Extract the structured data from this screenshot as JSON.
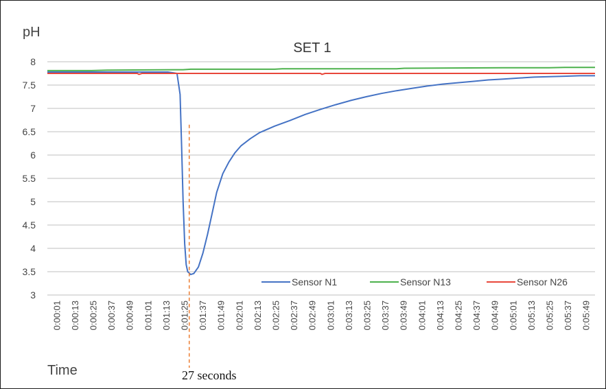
{
  "chart_data": {
    "type": "line",
    "title": "SET 1",
    "ylabel": "pH",
    "xlabel": "Time",
    "ylim": [
      3,
      8
    ],
    "y_ticks": [
      "3",
      "3.5",
      "4",
      "4.5",
      "5",
      "5.5",
      "6",
      "6.5",
      "7",
      "7.5",
      "8"
    ],
    "x_ticks": [
      "0:00:01",
      "0:00:13",
      "0:00:25",
      "0:00:37",
      "0:00:49",
      "0:01:01",
      "0:01:13",
      "0:01:25",
      "0:01:37",
      "0:01:49",
      "0:02:01",
      "0:02:13",
      "0:02:25",
      "0:02:37",
      "0:02:49",
      "0:03:01",
      "0:03:13",
      "0:03:25",
      "0:03:37",
      "0:03:49",
      "0:04:01",
      "0:04:13",
      "0:04:25",
      "0:04:37",
      "0:04:49",
      "0:05:01",
      "0:05:13",
      "0:05:25",
      "0:05:37",
      "0:05:49"
    ],
    "x_range_seconds": [
      1,
      360
    ],
    "grid": "horizontal",
    "legend_position": "bottom-right",
    "series": [
      {
        "name": "Sensor N1",
        "color": "#4472C4",
        "points": [
          [
            1,
            7.78
          ],
          [
            20,
            7.78
          ],
          [
            40,
            7.78
          ],
          [
            60,
            7.78
          ],
          [
            80,
            7.78
          ],
          [
            86,
            7.75
          ],
          [
            88,
            7.3
          ],
          [
            89,
            6.2
          ],
          [
            90,
            5.0
          ],
          [
            91,
            4.1
          ],
          [
            92,
            3.65
          ],
          [
            93,
            3.5
          ],
          [
            95,
            3.44
          ],
          [
            97,
            3.46
          ],
          [
            100,
            3.6
          ],
          [
            103,
            3.9
          ],
          [
            106,
            4.3
          ],
          [
            109,
            4.75
          ],
          [
            112,
            5.2
          ],
          [
            116,
            5.6
          ],
          [
            120,
            5.85
          ],
          [
            124,
            6.05
          ],
          [
            128,
            6.2
          ],
          [
            134,
            6.35
          ],
          [
            140,
            6.48
          ],
          [
            150,
            6.62
          ],
          [
            160,
            6.74
          ],
          [
            170,
            6.87
          ],
          [
            180,
            6.98
          ],
          [
            190,
            7.08
          ],
          [
            200,
            7.17
          ],
          [
            210,
            7.25
          ],
          [
            220,
            7.32
          ],
          [
            230,
            7.38
          ],
          [
            240,
            7.43
          ],
          [
            250,
            7.48
          ],
          [
            260,
            7.52
          ],
          [
            270,
            7.55
          ],
          [
            280,
            7.58
          ],
          [
            290,
            7.61
          ],
          [
            300,
            7.63
          ],
          [
            310,
            7.65
          ],
          [
            320,
            7.67
          ],
          [
            330,
            7.68
          ],
          [
            340,
            7.69
          ],
          [
            350,
            7.7
          ],
          [
            360,
            7.7
          ]
        ]
      },
      {
        "name": "Sensor N13",
        "color": "#4CB14C",
        "points": [
          [
            1,
            7.81
          ],
          [
            30,
            7.81
          ],
          [
            40,
            7.82
          ],
          [
            90,
            7.83
          ],
          [
            95,
            7.84
          ],
          [
            150,
            7.84
          ],
          [
            155,
            7.85
          ],
          [
            230,
            7.85
          ],
          [
            235,
            7.86
          ],
          [
            300,
            7.87
          ],
          [
            330,
            7.87
          ],
          [
            340,
            7.88
          ],
          [
            360,
            7.88
          ]
        ]
      },
      {
        "name": "Sensor N26",
        "color": "#E8473A",
        "points": [
          [
            1,
            7.75
          ],
          [
            60,
            7.75
          ],
          [
            61,
            7.73
          ],
          [
            63,
            7.75
          ],
          [
            180,
            7.75
          ],
          [
            181,
            7.73
          ],
          [
            183,
            7.75
          ],
          [
            360,
            7.75
          ]
        ]
      }
    ],
    "annotation": {
      "x_seconds": 94,
      "y_from": 3.0,
      "y_to": 6.65,
      "label": "27 seconds",
      "color": "#ED7D31"
    }
  }
}
